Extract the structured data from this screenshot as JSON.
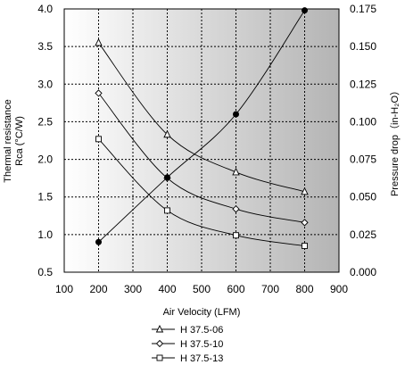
{
  "chart_data": {
    "type": "line",
    "x": [
      200,
      400,
      600,
      800
    ],
    "xlabel": "Air Velocity (LFM)",
    "xlim": [
      100,
      900
    ],
    "xticks": [
      "100",
      "200",
      "300",
      "400",
      "500",
      "600",
      "700",
      "800",
      "900"
    ],
    "ylabel_left_line1": "Thermal resistance",
    "ylabel_left_line2": "Rca (°C/W)",
    "ylim_left": [
      0.5,
      4.0
    ],
    "yticks_left": [
      "0.5",
      "1.0",
      "1.5",
      "2.0",
      "2.5",
      "3.0",
      "3.5",
      "4.0"
    ],
    "ylabel_right": "Pressure drop（in-H₂O）",
    "ylim_right": [
      0,
      0.175
    ],
    "yticks_right": [
      "0.000",
      "0.025",
      "0.050",
      "0.075",
      "0.100",
      "0.125",
      "0.150",
      "0.175"
    ],
    "grid": true,
    "plot_background": "#c8c8c8",
    "series": [
      {
        "name": "H 37.5-06",
        "axis": "left",
        "marker": "triangle",
        "values": [
          3.55,
          2.33,
          1.83,
          1.57
        ]
      },
      {
        "name": "H 37.5-10",
        "axis": "left",
        "marker": "diamond",
        "values": [
          2.88,
          1.75,
          1.34,
          1.16
        ]
      },
      {
        "name": "H 37.5-13",
        "axis": "left",
        "marker": "square",
        "values": [
          2.27,
          1.32,
          0.99,
          0.85
        ]
      },
      {
        "axis": "right",
        "marker": "filled-circle",
        "values": [
          0.02,
          0.063,
          0.105,
          0.174
        ]
      }
    ],
    "legend_position": "bottom"
  }
}
